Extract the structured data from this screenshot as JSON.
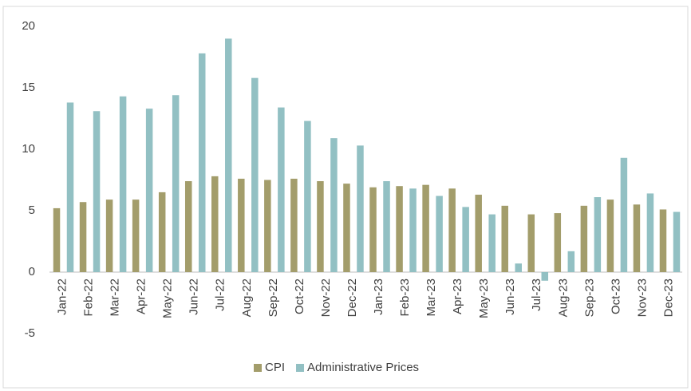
{
  "chart_data": {
    "type": "bar",
    "categories": [
      "Jan-22",
      "Feb-22",
      "Mar-22",
      "Apr-22",
      "May-22",
      "Jun-22",
      "Jul-22",
      "Aug-22",
      "Sep-22",
      "Oct-22",
      "Nov-22",
      "Dec-22",
      "Jan-23",
      "Feb-23",
      "Mar-23",
      "Apr-23",
      "May-23",
      "Jun-23",
      "Jul-23",
      "Aug-23",
      "Sep-23",
      "Oct-23",
      "Nov-23",
      "Dec-23"
    ],
    "series": [
      {
        "name": "CPI",
        "color": "#a39d6b",
        "values": [
          5.2,
          5.7,
          5.9,
          5.9,
          6.5,
          7.4,
          7.8,
          7.6,
          7.5,
          7.6,
          7.4,
          7.2,
          6.9,
          7.0,
          7.1,
          6.8,
          6.3,
          5.4,
          4.7,
          4.8,
          5.4,
          5.9,
          5.5,
          5.1
        ]
      },
      {
        "name": "Administrative Prices",
        "color": "#92c0c3",
        "values": [
          13.8,
          13.1,
          14.3,
          13.3,
          14.4,
          17.8,
          19.0,
          15.8,
          13.4,
          12.3,
          10.9,
          10.3,
          7.4,
          6.8,
          6.2,
          5.3,
          4.7,
          0.7,
          -0.7,
          1.7,
          6.1,
          9.3,
          6.4,
          4.9
        ]
      }
    ],
    "ylim": [
      -5,
      20
    ],
    "yticks": [
      -5,
      0,
      5,
      10,
      15,
      20
    ],
    "legend": "bottom",
    "grid": false
  }
}
